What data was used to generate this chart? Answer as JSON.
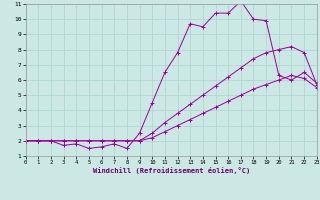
{
  "background_color": "#cce8e4",
  "line_color": "#990099",
  "xlabel": "Windchill (Refroidissement éolien,°C)",
  "xmin": 0,
  "xmax": 23,
  "ymin": 1,
  "ymax": 11,
  "yticks": [
    1,
    2,
    3,
    4,
    5,
    6,
    7,
    8,
    9,
    10,
    11
  ],
  "xticks": [
    0,
    1,
    2,
    3,
    4,
    5,
    6,
    7,
    8,
    9,
    10,
    11,
    12,
    13,
    14,
    15,
    16,
    17,
    18,
    19,
    20,
    21,
    22,
    23
  ],
  "line1_x": [
    0,
    1,
    2,
    3,
    4,
    5,
    6,
    7,
    8,
    9,
    10,
    11,
    12,
    13,
    14,
    15,
    16,
    17,
    18,
    19,
    20,
    21,
    22,
    23
  ],
  "line1_y": [
    2.0,
    2.0,
    2.0,
    1.7,
    1.8,
    1.5,
    1.6,
    1.8,
    1.5,
    2.5,
    4.5,
    6.5,
    7.8,
    9.7,
    9.5,
    10.4,
    10.4,
    11.2,
    10.0,
    9.9,
    6.3,
    6.0,
    6.5,
    5.8
  ],
  "line2_x": [
    0,
    1,
    2,
    3,
    4,
    5,
    6,
    7,
    8,
    9,
    10,
    11,
    12,
    13,
    14,
    15,
    16,
    17,
    18,
    19,
    20,
    21,
    22,
    23
  ],
  "line2_y": [
    2.0,
    2.0,
    2.0,
    2.0,
    2.0,
    2.0,
    2.0,
    2.0,
    2.0,
    2.0,
    2.5,
    3.2,
    3.8,
    4.4,
    5.0,
    5.6,
    6.2,
    6.8,
    7.4,
    7.8,
    8.0,
    8.2,
    7.8,
    5.7
  ],
  "line3_x": [
    0,
    1,
    2,
    3,
    4,
    5,
    6,
    7,
    8,
    9,
    10,
    11,
    12,
    13,
    14,
    15,
    16,
    17,
    18,
    19,
    20,
    21,
    22,
    23
  ],
  "line3_y": [
    2.0,
    2.0,
    2.0,
    2.0,
    2.0,
    2.0,
    2.0,
    2.0,
    2.0,
    2.0,
    2.2,
    2.6,
    3.0,
    3.4,
    3.8,
    4.2,
    4.6,
    5.0,
    5.4,
    5.7,
    6.0,
    6.3,
    6.1,
    5.5
  ]
}
